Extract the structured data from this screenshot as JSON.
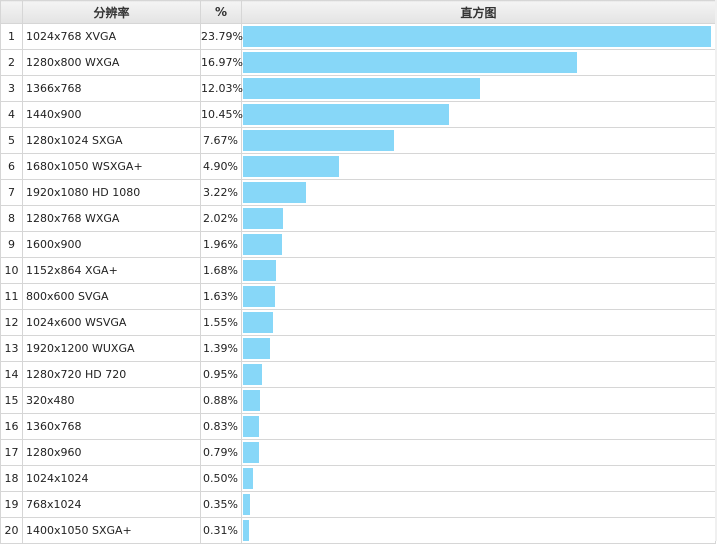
{
  "columns": {
    "rank": "",
    "resolution": "分辨率",
    "percent": "%",
    "histogram": "直方图"
  },
  "colors": {
    "bar": "#87d7f8"
  },
  "chart_data": {
    "type": "bar",
    "orientation": "horizontal",
    "categories": [
      "1024x768 XVGA",
      "1280x800 WXGA",
      "1366x768",
      "1440x900",
      "1280x1024 SXGA",
      "1680x1050 WSXGA+",
      "1920x1080 HD 1080",
      "1280x768 WXGA",
      "1600x900",
      "1152x864 XGA+",
      "800x600 SVGA",
      "1024x600 WSVGA",
      "1920x1200 WUXGA",
      "1280x720 HD 720",
      "320x480",
      "1360x768",
      "1280x960",
      "1024x1024",
      "768x1024",
      "1400x1050 SXGA+"
    ],
    "values": [
      23.79,
      16.97,
      12.03,
      10.45,
      7.67,
      4.9,
      3.22,
      2.02,
      1.96,
      1.68,
      1.63,
      1.55,
      1.39,
      0.95,
      0.88,
      0.83,
      0.79,
      0.5,
      0.35,
      0.31
    ],
    "labels": [
      "23.79%",
      "16.97%",
      "12.03%",
      "10.45%",
      "7.67%",
      "4.90%",
      "3.22%",
      "2.02%",
      "1.96%",
      "1.68%",
      "1.63%",
      "1.55%",
      "1.39%",
      "0.95%",
      "0.88%",
      "0.83%",
      "0.79%",
      "0.50%",
      "0.35%",
      "0.31%"
    ],
    "ranks": [
      "1",
      "2",
      "3",
      "4",
      "5",
      "6",
      "7",
      "8",
      "9",
      "10",
      "11",
      "12",
      "13",
      "14",
      "15",
      "16",
      "17",
      "18",
      "19",
      "20"
    ],
    "title": "",
    "xlabel": "",
    "ylabel": "",
    "xlim": [
      0,
      23.79
    ],
    "grid": true,
    "legend": "none"
  }
}
